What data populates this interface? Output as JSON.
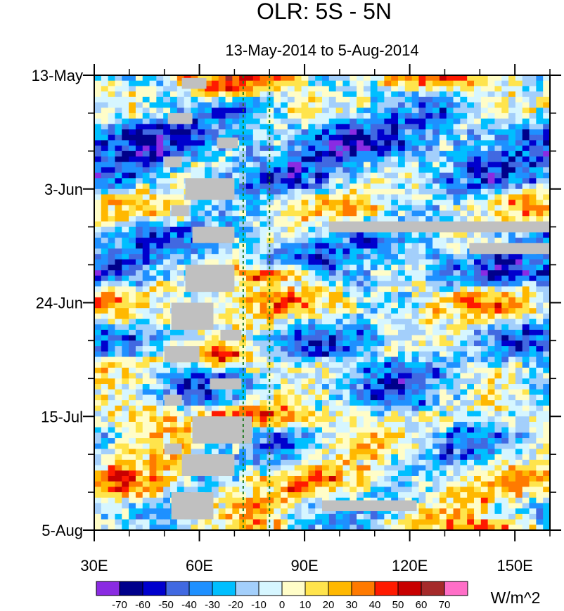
{
  "chart_data": {
    "type": "heatmap",
    "title": "OLR: 5S - 5N",
    "subtitle": "13-May-2014 to 5-Aug-2014",
    "x_axis": {
      "range": [
        30,
        160
      ],
      "ticks": [
        30,
        60,
        90,
        120,
        150
      ],
      "tick_labels": [
        "30E",
        "60E",
        "90E",
        "120E",
        "150E"
      ],
      "minor_ticks": [
        40,
        50,
        70,
        80,
        100,
        110,
        130,
        140,
        160
      ]
    },
    "y_axis": {
      "range_days": [
        0,
        84
      ],
      "ticks_days": [
        0,
        21,
        42,
        63,
        84
      ],
      "tick_labels": [
        "13-May",
        "3-Jun",
        "24-Jun",
        "15-Jul",
        "5-Aug"
      ],
      "minor_ticks_days": [
        7,
        14,
        28,
        35,
        49,
        56,
        70,
        77
      ]
    },
    "reference_lines_lon": [
      72.5,
      80
    ],
    "colorbar": {
      "labels": [
        "-70",
        "-60",
        "-50",
        "-40",
        "-30",
        "-20",
        "-10",
        "0",
        "10",
        "20",
        "30",
        "40",
        "50",
        "60",
        "70"
      ],
      "colors": [
        "#8a2be2",
        "#00008b",
        "#0000cd",
        "#4169e1",
        "#1e90ff",
        "#00bfff",
        "#a3cffb",
        "#d6f6ff",
        "#fffdc8",
        "#ffe44c",
        "#ffb800",
        "#ff7a00",
        "#ff1a00",
        "#c80000",
        "#a52a2a",
        "#ff6ec7"
      ],
      "units": "W/m^2"
    },
    "bands": [
      {
        "day": 0,
        "lon_start": 30,
        "lon_end": 160,
        "base": 14,
        "amp": 28
      },
      {
        "day": 2,
        "lon_start": 58,
        "lon_end": 80,
        "peak": 50,
        "width_deg": 10
      },
      {
        "day": 6,
        "lon_start": 30,
        "lon_end": 160,
        "base": -18,
        "amp": 22
      },
      {
        "day": 12,
        "lon_start": 30,
        "lon_end": 160,
        "base": -38,
        "amp": 22
      },
      {
        "day": 19,
        "lon_start": 30,
        "lon_end": 160,
        "base": -30,
        "amp": 28
      },
      {
        "day": 24,
        "lon_start": 30,
        "lon_end": 160,
        "base": 6,
        "amp": 26
      },
      {
        "day": 30,
        "lon_start": 30,
        "lon_end": 160,
        "base": -26,
        "amp": 20
      },
      {
        "day": 35,
        "lon_start": 30,
        "lon_end": 160,
        "base": -34,
        "amp": 26
      },
      {
        "day": 37,
        "lon_start": 58,
        "lon_end": 100,
        "peak": 46,
        "width_deg": 16
      },
      {
        "day": 43,
        "lon_start": 30,
        "lon_end": 160,
        "base": 10,
        "amp": 24
      },
      {
        "day": 48,
        "lon_start": 30,
        "lon_end": 160,
        "base": -24,
        "amp": 26
      },
      {
        "day": 52,
        "lon_start": 50,
        "lon_end": 80,
        "peak": 50,
        "width_deg": 12
      },
      {
        "day": 57,
        "lon_start": 30,
        "lon_end": 160,
        "base": -20,
        "amp": 24
      },
      {
        "day": 63,
        "lon_start": 52,
        "lon_end": 100,
        "peak": 52,
        "width_deg": 16
      },
      {
        "day": 69,
        "lon_start": 30,
        "lon_end": 160,
        "base": -16,
        "amp": 26
      },
      {
        "day": 75,
        "lon_start": 30,
        "lon_end": 160,
        "base": 8,
        "amp": 26
      },
      {
        "day": 81,
        "lon_start": 30,
        "lon_end": 160,
        "base": -6,
        "amp": 30
      },
      {
        "day": 84,
        "lon_start": 130,
        "lon_end": 160,
        "peak": 40,
        "width_deg": 14
      }
    ],
    "missing_data": [
      {
        "lon": [
          97,
          160
        ],
        "day": [
          27,
          29
        ]
      },
      {
        "lon": [
          137,
          160
        ],
        "day": [
          31,
          33
        ]
      },
      {
        "lon": [
          95,
          122
        ],
        "day": [
          78.5,
          80.5
        ]
      },
      {
        "lon": [
          55,
          62
        ],
        "day": [
          0.5,
          2.5
        ]
      },
      {
        "lon": [
          51,
          58
        ],
        "day": [
          7,
          9
        ]
      },
      {
        "lon": [
          65,
          71
        ],
        "day": [
          11.5,
          13.5
        ]
      },
      {
        "lon": [
          50,
          55
        ],
        "day": [
          15,
          17
        ]
      },
      {
        "lon": [
          52,
          57
        ],
        "day": [
          24,
          26
        ]
      },
      {
        "lon": [
          56,
          70
        ],
        "day": [
          19,
          23
        ]
      },
      {
        "lon": [
          58,
          70
        ],
        "day": [
          28,
          31
        ]
      },
      {
        "lon": [
          56,
          70
        ],
        "day": [
          35,
          40
        ]
      },
      {
        "lon": [
          52,
          64
        ],
        "day": [
          42,
          47
        ]
      },
      {
        "lon": [
          50,
          60
        ],
        "day": [
          50,
          53
        ]
      },
      {
        "lon": [
          66,
          72
        ],
        "day": [
          47,
          49
        ]
      },
      {
        "lon": [
          63,
          72
        ],
        "day": [
          56,
          58
        ]
      },
      {
        "lon": [
          50,
          55
        ],
        "day": [
          59,
          61
        ]
      },
      {
        "lon": [
          58,
          75
        ],
        "day": [
          63,
          68
        ]
      },
      {
        "lon": [
          50,
          55
        ],
        "day": [
          68,
          70
        ]
      },
      {
        "lon": [
          55,
          70
        ],
        "day": [
          70,
          74
        ]
      },
      {
        "lon": [
          52,
          64
        ],
        "day": [
          77,
          82
        ]
      }
    ]
  }
}
